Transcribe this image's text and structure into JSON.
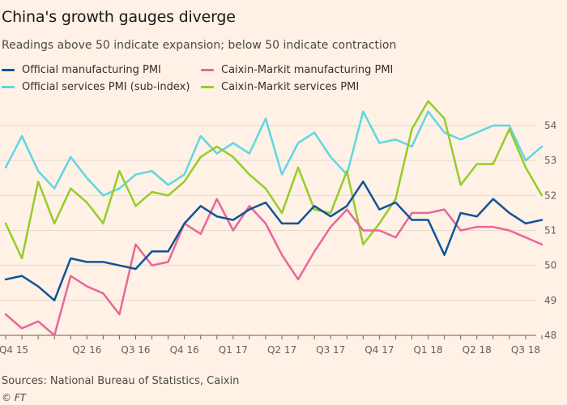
{
  "chart_data": {
    "type": "line",
    "title": "China's growth gauges diverge",
    "subtitle": "Readings above 50 indicate expansion; below 50 indicate contraction",
    "xlabel": "",
    "ylabel": "",
    "ylim": [
      48,
      55
    ],
    "yticks": [
      48,
      49,
      50,
      51,
      52,
      53,
      54
    ],
    "y_tick_labels": [
      "48",
      "49",
      "50",
      "51",
      "52",
      "53",
      "54"
    ],
    "grid": true,
    "legend_position": "top-left",
    "x_tick_labels": [
      {
        "index": 1,
        "label": "Q4 15"
      },
      {
        "index": 10,
        "label": "Q2 16"
      },
      {
        "index": 16,
        "label": "Q3 16"
      },
      {
        "index": 22,
        "label": "Q4 16"
      },
      {
        "index": 28,
        "label": "Q1 17"
      },
      {
        "index": 34,
        "label": "Q2 17"
      },
      {
        "index": 40,
        "label": "Q3 17"
      },
      {
        "index": 46,
        "label": "Q4 17"
      },
      {
        "index": 52,
        "label": "Q1 18"
      },
      {
        "index": 58,
        "label": "Q2 18"
      },
      {
        "index": 64,
        "label": "Q3 18"
      }
    ],
    "series": [
      {
        "name": "Official manufacturing PMI",
        "color": "#0f5499",
        "x": [
          0,
          2,
          4,
          6,
          8,
          10,
          12,
          14,
          16,
          18,
          20,
          22,
          24,
          26,
          28,
          30,
          32,
          34,
          36,
          38,
          40,
          42,
          44,
          46,
          48,
          50,
          52,
          54,
          56,
          58,
          60,
          62,
          64,
          66
        ],
        "values": [
          49.6,
          49.7,
          49.4,
          49.0,
          50.2,
          50.1,
          50.1,
          50.0,
          49.9,
          50.4,
          50.4,
          51.2,
          51.7,
          51.4,
          51.3,
          51.6,
          51.8,
          51.2,
          51.2,
          51.7,
          51.4,
          51.7,
          52.4,
          51.6,
          51.8,
          51.3,
          51.3,
          50.3,
          51.5,
          51.4,
          51.9,
          51.5,
          51.2,
          51.3
        ]
      },
      {
        "name": "Caixin-Markit manufacturing PMI",
        "color": "#e8669b",
        "x": [
          0,
          2,
          4,
          6,
          8,
          10,
          12,
          14,
          16,
          18,
          20,
          22,
          24,
          26,
          28,
          30,
          32,
          34,
          36,
          38,
          40,
          42,
          44,
          46,
          48,
          50,
          52,
          54,
          56,
          58,
          60,
          62,
          64,
          66
        ],
        "values": [
          48.6,
          48.2,
          48.4,
          48.0,
          49.7,
          49.4,
          49.2,
          48.6,
          50.6,
          50.0,
          50.1,
          51.2,
          50.9,
          51.9,
          51.0,
          51.7,
          51.2,
          50.3,
          49.6,
          50.4,
          51.1,
          51.6,
          51.0,
          51.0,
          50.8,
          51.5,
          51.5,
          51.6,
          51.0,
          51.1,
          51.1,
          51.0,
          50.8,
          50.6
        ]
      },
      {
        "name": "Official services PMI (sub-index)",
        "color": "#5fd7e0",
        "x": [
          0,
          2,
          4,
          6,
          8,
          10,
          12,
          14,
          16,
          18,
          20,
          22,
          24,
          26,
          28,
          30,
          32,
          34,
          36,
          38,
          40,
          42,
          44,
          46,
          48,
          50,
          52,
          54,
          56,
          58,
          60,
          62,
          64,
          66
        ],
        "values": [
          52.8,
          53.7,
          52.7,
          52.2,
          53.1,
          52.5,
          52.0,
          52.2,
          52.6,
          52.7,
          52.3,
          52.6,
          53.7,
          53.2,
          53.5,
          53.2,
          54.2,
          52.6,
          53.5,
          53.8,
          53.1,
          52.6,
          54.4,
          53.5,
          53.6,
          53.4,
          54.4,
          53.8,
          53.6,
          53.8,
          54.0,
          54.0,
          53.0,
          53.4
        ]
      },
      {
        "name": "Caixin-Markit services PMI",
        "color": "#96cc28",
        "x": [
          0,
          2,
          4,
          6,
          8,
          10,
          12,
          14,
          16,
          18,
          20,
          22,
          24,
          26,
          28,
          30,
          32,
          34,
          36,
          38,
          40,
          42,
          44,
          46,
          48,
          50,
          52,
          54,
          56,
          58,
          60,
          62,
          64,
          66
        ],
        "values": [
          51.2,
          50.2,
          52.4,
          51.2,
          52.2,
          51.8,
          51.2,
          52.7,
          51.7,
          52.1,
          52.0,
          52.4,
          53.1,
          53.4,
          53.1,
          52.6,
          52.2,
          51.5,
          52.8,
          51.6,
          51.5,
          52.7,
          50.6,
          51.2,
          51.9,
          53.9,
          54.7,
          54.2,
          52.3,
          52.9,
          52.9,
          53.9,
          52.8,
          52.0
        ]
      }
    ]
  },
  "source": "Sources: National Bureau of Statistics, Caixin",
  "copyright": "© FT"
}
